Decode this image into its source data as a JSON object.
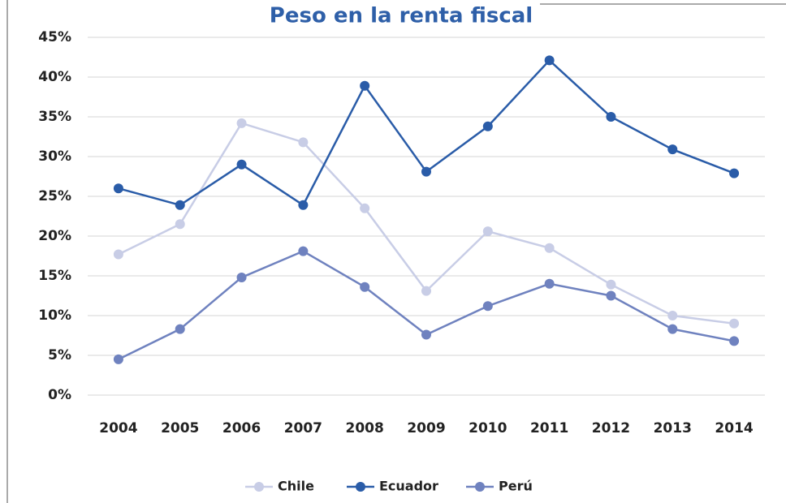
{
  "chart_data": {
    "type": "line",
    "title": "Peso en la renta fiscal",
    "categories": [
      "2004",
      "2005",
      "2006",
      "2007",
      "2008",
      "2009",
      "2010",
      "2011",
      "2012",
      "2013",
      "2014"
    ],
    "series": [
      {
        "name": "Chile",
        "color": "#c8cde6",
        "values": [
          17.7,
          21.5,
          34.2,
          31.8,
          23.5,
          13.1,
          20.6,
          18.5,
          13.9,
          10.0,
          9.0
        ]
      },
      {
        "name": "Ecuador",
        "color": "#2a5ca8",
        "values": [
          26,
          23.9,
          29,
          23.9,
          38.9,
          28.1,
          33.8,
          42.1,
          35,
          30.9,
          27.9
        ]
      },
      {
        "name": "Perú",
        "color": "#6f82bf",
        "values": [
          4.5,
          8.3,
          14.8,
          18.1,
          13.6,
          7.6,
          11.2,
          14.0,
          12.5,
          8.3,
          6.8
        ]
      }
    ],
    "ylim": [
      0,
      45
    ],
    "yticks": [
      {
        "value": 0,
        "label": "0%"
      },
      {
        "value": 5,
        "label": "5%"
      },
      {
        "value": 10,
        "label": "10%"
      },
      {
        "value": 15,
        "label": "15%"
      },
      {
        "value": 20,
        "label": "20%"
      },
      {
        "value": 25,
        "label": "25%"
      },
      {
        "value": 30,
        "label": "30%"
      },
      {
        "value": 35,
        "label": "35%"
      },
      {
        "value": 40,
        "label": "40%"
      },
      {
        "value": 45,
        "label": "45%"
      }
    ],
    "grid": true,
    "legend": "bottom"
  }
}
